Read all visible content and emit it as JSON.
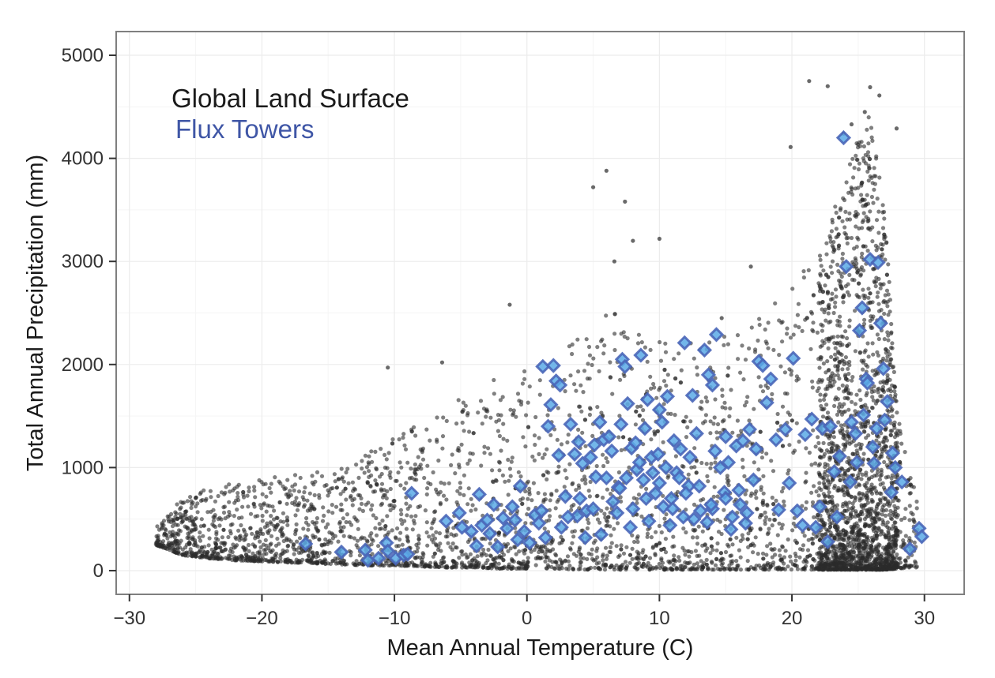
{
  "chart_data": {
    "type": "scatter",
    "title": "",
    "xlabel": "Mean Annual Temperature (C)",
    "ylabel": "Total Annual Precipitation (mm)",
    "xlim": [
      -31,
      33
    ],
    "ylim": [
      -230,
      5230
    ],
    "x_ticks": [
      -30,
      -20,
      -10,
      0,
      10,
      20,
      30
    ],
    "y_ticks": [
      0,
      1000,
      2000,
      3000,
      4000,
      5000
    ],
    "x_tick_labels": [
      "−30",
      "−20",
      "−10",
      "0",
      "10",
      "20",
      "30"
    ],
    "y_tick_labels": [
      "0",
      "1000",
      "2000",
      "3000",
      "4000",
      "5000"
    ],
    "grid": true,
    "legend_position": "top-left",
    "colors": {
      "land": "#2b2b2b",
      "tower_stroke": "#4a66b8",
      "tower_fill": "#5aa9e6",
      "legend_blue": "#3f56a6",
      "grid": "#ececec",
      "panel_border": "#7f7f7f"
    },
    "series": [
      {
        "name": "Global Land Surface",
        "marker": "circle",
        "points_note_only": false,
        "envelope": [
          [
            -28,
            250,
            450
          ],
          [
            -26,
            150,
            700
          ],
          [
            -24,
            120,
            800
          ],
          [
            -22,
            100,
            850
          ],
          [
            -20,
            90,
            900
          ],
          [
            -18,
            80,
            920
          ],
          [
            -16,
            70,
            950
          ],
          [
            -14,
            60,
            1000
          ],
          [
            -12,
            50,
            1150
          ],
          [
            -10,
            50,
            1300
          ],
          [
            -8,
            40,
            1450
          ],
          [
            -6,
            30,
            1600
          ],
          [
            -4,
            30,
            1750
          ],
          [
            -2,
            20,
            1900
          ],
          [
            0,
            20,
            2000
          ],
          [
            2,
            20,
            2150
          ],
          [
            4,
            10,
            2300
          ],
          [
            6,
            10,
            2600
          ],
          [
            8,
            10,
            2400
          ],
          [
            10,
            10,
            2300
          ],
          [
            12,
            10,
            2200
          ],
          [
            14,
            10,
            2250
          ],
          [
            16,
            10,
            2300
          ],
          [
            18,
            10,
            2500
          ],
          [
            20,
            10,
            2800
          ],
          [
            22,
            10,
            3100
          ],
          [
            24,
            10,
            3800
          ],
          [
            25,
            10,
            4200
          ],
          [
            26,
            10,
            4500
          ],
          [
            27,
            10,
            3500
          ],
          [
            28,
            20,
            1500
          ],
          [
            29,
            30,
            900
          ]
        ],
        "outliers": [
          [
            5,
            3720
          ],
          [
            6,
            3880
          ],
          [
            7.4,
            3580
          ],
          [
            8,
            3200
          ],
          [
            10,
            3220
          ],
          [
            6.6,
            3000
          ],
          [
            -1.3,
            2580
          ],
          [
            -6.4,
            2020
          ],
          [
            -10.5,
            1970
          ],
          [
            21.3,
            4750
          ],
          [
            22.7,
            4700
          ],
          [
            25.9,
            4690
          ],
          [
            26.6,
            4610
          ],
          [
            19.9,
            4110
          ],
          [
            27.9,
            4290
          ],
          [
            14.7,
            2450
          ],
          [
            16.9,
            2950
          ],
          [
            23.9,
            4240
          ],
          [
            24.5,
            4330
          ],
          [
            25.5,
            4450
          ]
        ],
        "count": 5200
      },
      {
        "name": "Flux Towers",
        "marker": "diamond",
        "points": [
          [
            -16.7,
            260
          ],
          [
            -14,
            180
          ],
          [
            -12.2,
            200
          ],
          [
            -12,
            100
          ],
          [
            -11.2,
            120
          ],
          [
            -10.6,
            270
          ],
          [
            -10.5,
            190
          ],
          [
            -9.9,
            120
          ],
          [
            -9.3,
            150
          ],
          [
            -9,
            160
          ],
          [
            -8.7,
            750
          ],
          [
            -6.1,
            480
          ],
          [
            -4.9,
            420
          ],
          [
            -3.8,
            240
          ],
          [
            -3.6,
            740
          ],
          [
            -3.4,
            440
          ],
          [
            -3,
            490
          ],
          [
            -2.8,
            360
          ],
          [
            -2.2,
            230
          ],
          [
            -1.8,
            510
          ],
          [
            -1.5,
            410
          ],
          [
            -0.9,
            490
          ],
          [
            -0.5,
            820
          ],
          [
            -0.2,
            380
          ],
          [
            0.2,
            270
          ],
          [
            0.6,
            540
          ],
          [
            1.1,
            580
          ],
          [
            1.2,
            1980
          ],
          [
            1.6,
            1400
          ],
          [
            1.8,
            1610
          ],
          [
            2,
            1990
          ],
          [
            2.2,
            1840
          ],
          [
            2.5,
            1800
          ],
          [
            2.9,
            720
          ],
          [
            3.3,
            1420
          ],
          [
            3.6,
            1130
          ],
          [
            3.8,
            530
          ],
          [
            4.2,
            1040
          ],
          [
            4.5,
            580
          ],
          [
            4.8,
            1100
          ],
          [
            5.2,
            910
          ],
          [
            5.5,
            1440
          ],
          [
            5.8,
            1270
          ],
          [
            6.2,
            1300
          ],
          [
            6.5,
            670
          ],
          [
            6.9,
            810
          ],
          [
            7.2,
            2050
          ],
          [
            7.4,
            1980
          ],
          [
            7.6,
            1620
          ],
          [
            7.9,
            1190
          ],
          [
            8.3,
            980
          ],
          [
            8.6,
            2090
          ],
          [
            8.8,
            880
          ],
          [
            9.1,
            1660
          ],
          [
            9.4,
            1100
          ],
          [
            9.7,
            750
          ],
          [
            10,
            1560
          ],
          [
            10.3,
            620
          ],
          [
            10.6,
            1690
          ],
          [
            10.9,
            700
          ],
          [
            11.3,
            950
          ],
          [
            11.6,
            1180
          ],
          [
            11.9,
            2210
          ],
          [
            12.2,
            820
          ],
          [
            12.5,
            1700
          ],
          [
            12.8,
            1330
          ],
          [
            13.1,
            580
          ],
          [
            13.4,
            2140
          ],
          [
            13.7,
            1900
          ],
          [
            14,
            1800
          ],
          [
            14.3,
            2290
          ],
          [
            14.6,
            1000
          ],
          [
            14.9,
            760
          ],
          [
            15.2,
            1050
          ],
          [
            15.5,
            520
          ],
          [
            15.8,
            1210
          ],
          [
            16.1,
            640
          ],
          [
            16.5,
            460
          ],
          [
            16.8,
            1370
          ],
          [
            17.1,
            880
          ],
          [
            17.5,
            2030
          ],
          [
            17.8,
            1990
          ],
          [
            18.1,
            1630
          ],
          [
            18.4,
            1860
          ],
          [
            19,
            590
          ],
          [
            19.8,
            850
          ],
          [
            20.1,
            2060
          ],
          [
            20.4,
            580
          ],
          [
            21,
            1320
          ],
          [
            21.5,
            1470
          ],
          [
            21.8,
            420
          ],
          [
            22.3,
            1380
          ],
          [
            22.7,
            280
          ],
          [
            23.2,
            960
          ],
          [
            23.6,
            1110
          ],
          [
            23.9,
            4200
          ],
          [
            24.1,
            2950
          ],
          [
            24.5,
            1440
          ],
          [
            24.8,
            1330
          ],
          [
            25.1,
            2330
          ],
          [
            25.3,
            2550
          ],
          [
            25.6,
            1860
          ],
          [
            25.9,
            3020
          ],
          [
            26.2,
            1040
          ],
          [
            26.5,
            2990
          ],
          [
            26.7,
            2400
          ],
          [
            26.9,
            1960
          ],
          [
            27.2,
            1640
          ],
          [
            27.5,
            760
          ],
          [
            27.8,
            1000
          ],
          [
            28.3,
            860
          ],
          [
            28.9,
            210
          ],
          [
            29.6,
            410
          ],
          [
            29.8,
            330
          ],
          [
            4,
            700
          ],
          [
            5,
            600
          ],
          [
            6,
            900
          ],
          [
            7,
            800
          ],
          [
            8,
            600
          ],
          [
            9,
            700
          ],
          [
            10,
            850
          ],
          [
            11,
            600
          ],
          [
            12,
            750
          ],
          [
            13,
            820
          ],
          [
            14,
            600
          ],
          [
            15,
            700
          ],
          [
            16,
            780
          ],
          [
            8.5,
            1050
          ],
          [
            9.5,
            950
          ],
          [
            10.5,
            1000
          ],
          [
            11.5,
            900
          ],
          [
            7.5,
            900
          ],
          [
            6.8,
            560
          ],
          [
            12.6,
            500
          ],
          [
            13.6,
            470
          ],
          [
            3.1,
            520
          ],
          [
            2.6,
            420
          ],
          [
            1.4,
            320
          ],
          [
            0.9,
            460
          ],
          [
            5.6,
            350
          ],
          [
            4.4,
            320
          ],
          [
            7.8,
            420
          ],
          [
            9.2,
            480
          ],
          [
            10.8,
            440
          ],
          [
            11.8,
            520
          ],
          [
            13.9,
            640
          ],
          [
            15.4,
            400
          ],
          [
            16.6,
            560
          ],
          [
            8.2,
            1240
          ],
          [
            9.9,
            1130
          ],
          [
            11.1,
            1260
          ],
          [
            6.4,
            1160
          ],
          [
            5.1,
            1220
          ],
          [
            12.3,
            1100
          ],
          [
            14.2,
            1160
          ],
          [
            20.8,
            440
          ],
          [
            22.1,
            620
          ],
          [
            23.4,
            520
          ],
          [
            24.4,
            860
          ],
          [
            25.7,
            1820
          ],
          [
            26.4,
            1380
          ],
          [
            27,
            1460
          ],
          [
            27.6,
            1140
          ],
          [
            24.9,
            1050
          ],
          [
            26.1,
            1200
          ],
          [
            25.4,
            1510
          ],
          [
            22.9,
            1400
          ],
          [
            19.5,
            1370
          ],
          [
            18.8,
            1270
          ],
          [
            17.3,
            1180
          ],
          [
            16.3,
            1260
          ],
          [
            15,
            1300
          ],
          [
            7.1,
            1420
          ],
          [
            8.9,
            1380
          ],
          [
            10.2,
            1440
          ],
          [
            3.9,
            1250
          ],
          [
            2.4,
            1120
          ],
          [
            -2.5,
            640
          ],
          [
            -1.1,
            620
          ],
          [
            -0.7,
            300
          ],
          [
            -4.2,
            380
          ],
          [
            -5.1,
            560
          ]
        ]
      }
    ],
    "legend": [
      {
        "label": "Global Land Surface",
        "color": "#1a1a1a"
      },
      {
        "label": "Flux Towers",
        "color": "#3f56a6"
      }
    ]
  }
}
